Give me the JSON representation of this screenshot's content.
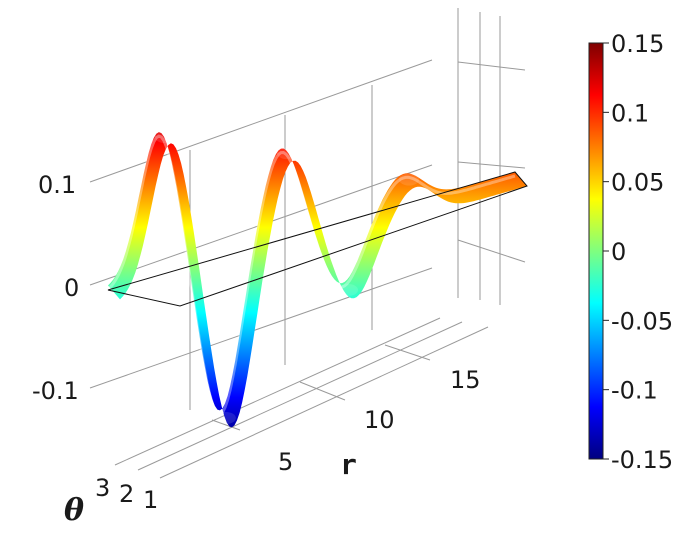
{
  "chart_data": {
    "type": "surface3d",
    "title": "",
    "axes": {
      "r": {
        "label": "r",
        "ticks": [
          "5",
          "10",
          "15"
        ],
        "range": [
          0,
          20
        ]
      },
      "theta": {
        "label": "θ",
        "ticks": [
          "1",
          "2",
          "3"
        ],
        "range": [
          0,
          3.14
        ]
      },
      "z": {
        "label": "",
        "ticks": [
          "0.1",
          "0",
          "-0.1"
        ],
        "range": [
          -0.15,
          0.15
        ]
      }
    },
    "features": [
      {
        "r": 2.5,
        "z": 0.14,
        "kind": "peak"
      },
      {
        "r": 5.5,
        "z": -0.15,
        "kind": "trough"
      },
      {
        "r": 8.5,
        "z": 0.09,
        "kind": "peak"
      },
      {
        "r": 11.5,
        "z": -0.06,
        "kind": "trough"
      },
      {
        "r": 14.5,
        "z": 0.03,
        "kind": "peak"
      }
    ],
    "colorbar": {
      "colormap": "jet",
      "range": [
        -0.15,
        0.15
      ],
      "ticks": [
        "0.15",
        "0.1",
        "0.05",
        "0",
        "-0.05",
        "-0.1",
        "-0.15"
      ],
      "colors": [
        "#00007f",
        "#0000ff",
        "#007fff",
        "#00ffff",
        "#7fff7f",
        "#ffff00",
        "#ff7f00",
        "#ff0000",
        "#7f0000"
      ]
    },
    "grid": true
  }
}
